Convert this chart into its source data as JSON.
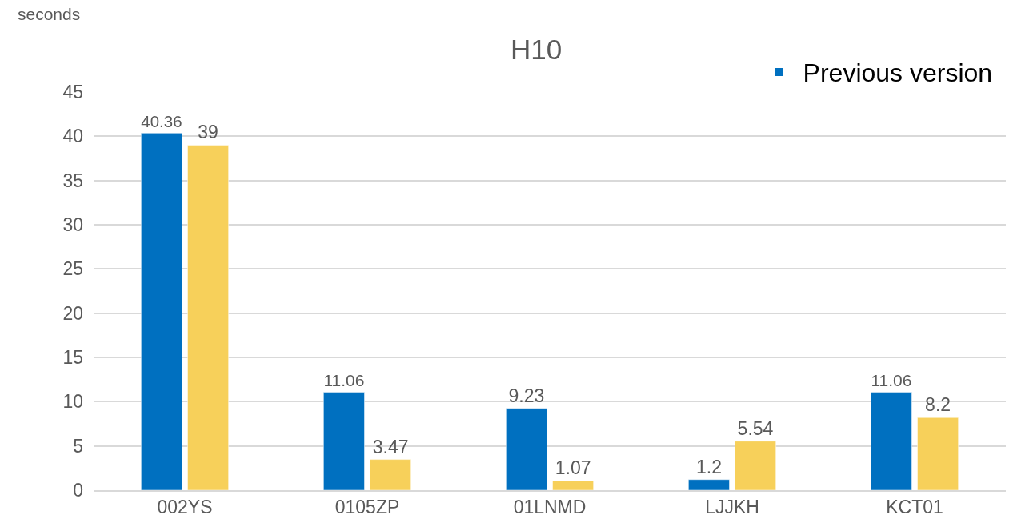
{
  "chart_data": {
    "type": "bar",
    "title": "H10",
    "annotations": [
      "seconds"
    ],
    "categories": [
      "002YS",
      "0105ZP",
      "01LNMD",
      "LJJKH",
      "KCT01"
    ],
    "series": [
      {
        "name": "Previous version",
        "color": "#0070c0",
        "values": [
          40.36,
          11.06,
          9.23,
          1.2,
          11.06
        ]
      },
      {
        "color": "#f7d05a",
        "values": [
          39,
          3.47,
          1.07,
          5.54,
          8.2
        ]
      }
    ],
    "ylim": [
      0,
      45
    ],
    "yticks": [
      0,
      5,
      10,
      15,
      20,
      25,
      30,
      35,
      40,
      45
    ],
    "grid": "y",
    "legend": "top right",
    "data_labels": true
  }
}
